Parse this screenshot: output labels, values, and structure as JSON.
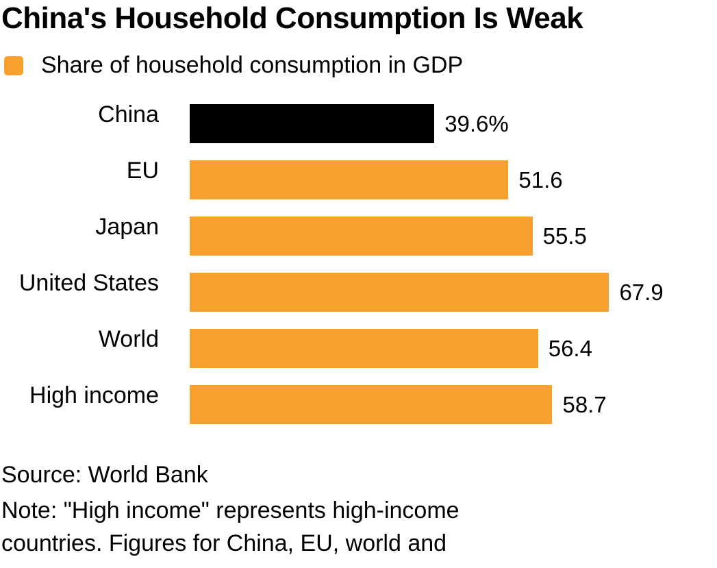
{
  "chart_data": {
    "type": "bar",
    "orientation": "horizontal",
    "title": "China's Household Consumption Is Weak",
    "legend": [
      "Share of household consumption in GDP"
    ],
    "categories": [
      "China",
      "EU",
      "Japan",
      "United States",
      "World",
      "High income"
    ],
    "values": [
      39.6,
      51.6,
      55.5,
      67.9,
      56.4,
      58.7
    ],
    "value_labels": [
      "39.6%",
      "51.6",
      "55.5",
      "67.9",
      "56.4",
      "58.7"
    ],
    "highlight": "China",
    "xlim": [
      0,
      100
    ],
    "grid": false,
    "legend_position": "top-left",
    "colors": {
      "default": "#F9A12E",
      "highlight": "#000000"
    }
  },
  "footer": {
    "source": "Source: World Bank",
    "note_line1": "Note: \"High income\" represents high-income",
    "note_line2": "countries. Figures for China, EU, world and"
  }
}
